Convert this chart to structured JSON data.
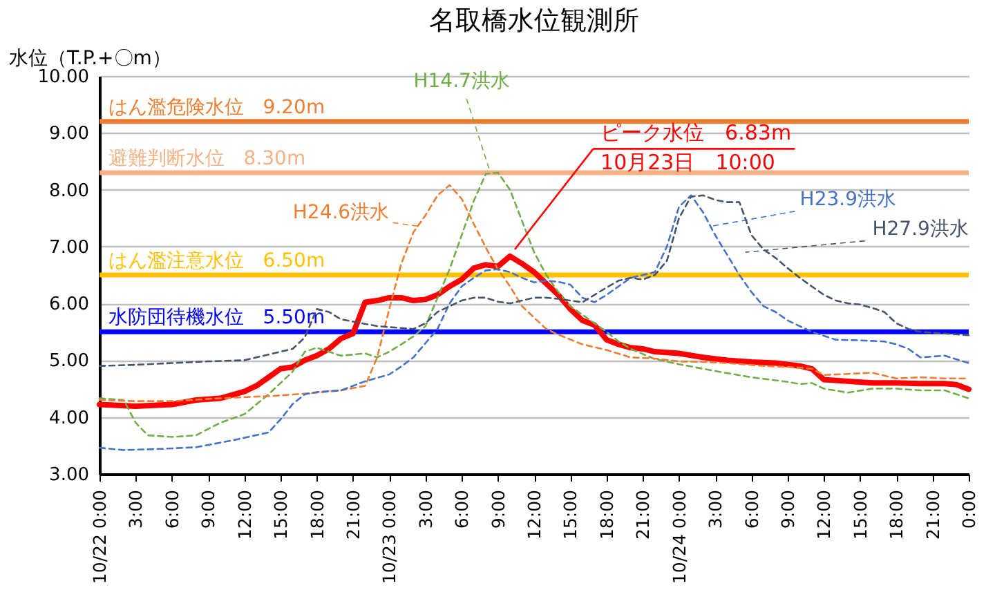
{
  "chart_data": {
    "type": "line",
    "title": "名取橋水位観測所",
    "ylabel": "水位（T.P.+〇m）",
    "xlim": [
      "--10-22T00:00",
      "--10-25T00:00"
    ],
    "ylim": [
      3,
      10
    ],
    "xticks": [
      {
        "value": "--10-22T00:00",
        "label": "10/22 0:00"
      },
      {
        "value": "--10-22T03:00",
        "label": "3:00"
      },
      {
        "value": "--10-22T06:00",
        "label": "6:00"
      },
      {
        "value": "--10-22T09:00",
        "label": "9:00"
      },
      {
        "value": "--10-22T12:00",
        "label": "12:00"
      },
      {
        "value": "--10-22T15:00",
        "label": "15:00"
      },
      {
        "value": "--10-22T18:00",
        "label": "18:00"
      },
      {
        "value": "--10-22T21:00",
        "label": "21:00"
      },
      {
        "value": "--10-23T00:00",
        "label": "10/23 0:00"
      },
      {
        "value": "--10-23T03:00",
        "label": "3:00"
      },
      {
        "value": "--10-23T06:00",
        "label": "6:00"
      },
      {
        "value": "--10-23T09:00",
        "label": "9:00"
      },
      {
        "value": "--10-23T12:00",
        "label": "12:00"
      },
      {
        "value": "--10-23T15:00",
        "label": "15:00"
      },
      {
        "value": "--10-23T18:00",
        "label": "18:00"
      },
      {
        "value": "--10-23T21:00",
        "label": "21:00"
      },
      {
        "value": "--10-24T00:00",
        "label": "10/24 0:00"
      },
      {
        "value": "--10-24T03:00",
        "label": "3:00"
      },
      {
        "value": "--10-24T06:00",
        "label": "6:00"
      },
      {
        "value": "--10-24T09:00",
        "label": "9:00"
      },
      {
        "value": "--10-24T12:00",
        "label": "12:00"
      },
      {
        "value": "--10-24T15:00",
        "label": "15:00"
      },
      {
        "value": "--10-24T18:00",
        "label": "18:00"
      },
      {
        "value": "--10-24T21:00",
        "label": "21:00"
      },
      {
        "value": "--10-25T00:00",
        "label": "0:00"
      }
    ],
    "yticks": [
      {
        "value": 3,
        "label": "3.00"
      },
      {
        "value": 4,
        "label": "4.00"
      },
      {
        "value": 5,
        "label": "5.00"
      },
      {
        "value": 6,
        "label": "6.00"
      },
      {
        "value": 7,
        "label": "7.00"
      },
      {
        "value": 8,
        "label": "8.00"
      },
      {
        "value": 9,
        "label": "9.00"
      },
      {
        "value": 10,
        "label": "10.00"
      }
    ],
    "grid": "y",
    "series": [
      {
        "color": "#ff0000",
        "line_style": "solid",
        "x": [
          "--10-22T00:00",
          "--10-22T03:00",
          "--10-22T06:00",
          "--10-22T08:00",
          "--10-22T10:00",
          "--10-22T12:00",
          "--10-22T13:00",
          "--10-22T14:00",
          "--10-22T15:00",
          "--10-22T16:00",
          "--10-22T17:00",
          "--10-22T18:00",
          "--10-22T19:00",
          "--10-22T20:00",
          "--10-22T21:00",
          "--10-22T22:00",
          "--10-22T23:00",
          "--10-23T00:00",
          "--10-23T01:00",
          "--10-23T02:00",
          "--10-23T03:00",
          "--10-23T04:00",
          "--10-23T05:00",
          "--10-23T06:00",
          "--10-23T07:00",
          "--10-23T08:00",
          "--10-23T09:00",
          "--10-23T10:00",
          "--10-23T11:00",
          "--10-23T12:00",
          "--10-23T13:00",
          "--10-23T14:00",
          "--10-23T15:00",
          "--10-23T16:00",
          "--10-23T17:00",
          "--10-23T18:00",
          "--10-23T19:00",
          "--10-23T20:00",
          "--10-23T21:00",
          "--10-23T22:00",
          "--10-24T00:00",
          "--10-24T02:00",
          "--10-24T04:00",
          "--10-24T06:00",
          "--10-24T08:00",
          "--10-24T10:00",
          "--10-24T11:00",
          "--10-24T12:00",
          "--10-24T14:00",
          "--10-24T16:00",
          "--10-24T18:00",
          "--10-24T20:00",
          "--10-24T22:00",
          "--10-24T23:00",
          "--10-25T00:00"
        ],
        "values": [
          4.22,
          4.19,
          4.22,
          4.3,
          4.33,
          4.45,
          4.55,
          4.7,
          4.85,
          4.88,
          5.0,
          5.08,
          5.2,
          5.38,
          5.47,
          6.02,
          6.05,
          6.1,
          6.1,
          6.05,
          6.07,
          6.15,
          6.3,
          6.42,
          6.62,
          6.68,
          6.65,
          6.83,
          6.7,
          6.55,
          6.35,
          6.15,
          5.9,
          5.7,
          5.62,
          5.36,
          5.28,
          5.22,
          5.2,
          5.15,
          5.12,
          5.05,
          5.0,
          4.97,
          4.95,
          4.9,
          4.85,
          4.66,
          4.63,
          4.6,
          4.6,
          4.59,
          4.59,
          4.57,
          4.49
        ]
      },
      {
        "name": "H14.7洪水",
        "color": "#70ad47",
        "line_style": "dashed",
        "x": [
          "--10-22T00:00",
          "--10-22T02:00",
          "--10-22T03:00",
          "--10-22T04:00",
          "--10-22T06:00",
          "--10-22T08:00",
          "--10-22T10:00",
          "--10-22T12:00",
          "--10-22T14:00",
          "--10-22T16:00",
          "--10-22T17:00",
          "--10-22T18:00",
          "--10-22T19:00",
          "--10-22T20:00",
          "--10-22T21:00",
          "--10-22T22:00",
          "--10-22T23:00",
          "--10-23T00:00",
          "--10-23T01:00",
          "--10-23T02:00",
          "--10-23T03:00",
          "--10-23T04:00",
          "--10-23T05:00",
          "--10-23T06:00",
          "--10-23T07:00",
          "--10-23T08:00",
          "--10-23T09:00",
          "--10-23T10:00",
          "--10-23T11:00",
          "--10-23T12:00",
          "--10-23T13:00",
          "--10-23T14:00",
          "--10-23T15:00",
          "--10-23T16:00",
          "--10-23T17:00",
          "--10-23T18:00",
          "--10-23T19:00",
          "--10-23T20:00",
          "--10-23T22:00",
          "--10-24T00:00",
          "--10-24T03:00",
          "--10-24T06:00",
          "--10-24T09:00",
          "--10-24T10:00",
          "--10-24T11:00",
          "--10-24T12:00",
          "--10-24T14:00",
          "--10-24T16:00",
          "--10-24T18:00",
          "--10-24T20:00",
          "--10-24T22:00",
          "--10-25T00:00"
        ],
        "values": [
          4.33,
          4.3,
          3.9,
          3.68,
          3.65,
          3.68,
          3.9,
          4.05,
          4.4,
          4.8,
          5.15,
          5.22,
          5.15,
          5.08,
          5.1,
          5.12,
          5.05,
          5.15,
          5.28,
          5.42,
          5.6,
          6.1,
          6.6,
          7.2,
          7.8,
          8.28,
          8.3,
          8.0,
          7.45,
          6.9,
          6.5,
          6.2,
          5.95,
          5.8,
          5.65,
          5.5,
          5.33,
          5.2,
          5.02,
          4.93,
          4.81,
          4.7,
          4.62,
          4.58,
          4.6,
          4.5,
          4.43,
          4.5,
          4.5,
          4.47,
          4.47,
          4.33
        ]
      },
      {
        "name": "H24.6洪水",
        "color": "#ed7d31",
        "line_style": "dashed",
        "x": [
          "--10-22T00:00",
          "--10-22T03:00",
          "--10-22T06:00",
          "--10-22T09:00",
          "--10-22T12:00",
          "--10-22T15:00",
          "--10-22T18:00",
          "--10-22T20:00",
          "--10-22T22:00",
          "--10-22T23:00",
          "--10-23T00:00",
          "--10-23T01:00",
          "--10-23T02:00",
          "--10-23T03:00",
          "--10-23T04:00",
          "--10-23T05:00",
          "--10-23T06:00",
          "--10-23T07:00",
          "--10-23T08:00",
          "--10-23T09:00",
          "--10-23T10:00",
          "--10-23T11:00",
          "--10-23T12:00",
          "--10-23T13:00",
          "--10-23T14:00",
          "--10-23T16:00",
          "--10-23T18:00",
          "--10-23T20:00",
          "--10-23T22:00",
          "--10-24T00:00",
          "--10-24T02:00",
          "--10-24T04:00",
          "--10-24T07:00",
          "--10-24T10:00",
          "--10-24T11:00",
          "--10-24T12:00",
          "--10-24T14:00",
          "--10-24T16:00",
          "--10-24T18:00",
          "--10-24T20:00",
          "--10-24T22:00",
          "--10-25T00:00"
        ],
        "values": [
          4.3,
          4.28,
          4.28,
          4.32,
          4.35,
          4.38,
          4.43,
          4.47,
          4.55,
          5.05,
          5.9,
          6.7,
          7.25,
          7.55,
          7.9,
          8.08,
          7.84,
          7.4,
          6.98,
          6.6,
          6.3,
          5.95,
          5.75,
          5.55,
          5.45,
          5.28,
          5.18,
          5.05,
          5.03,
          4.98,
          4.97,
          4.95,
          4.9,
          4.87,
          4.85,
          4.74,
          4.76,
          4.78,
          4.68,
          4.7,
          4.68,
          4.68
        ]
      },
      {
        "name": "H23.9洪水",
        "color": "#4472c4",
        "line_style": "dashed",
        "x": [
          "--10-22T00:00",
          "--10-22T02:00",
          "--10-22T05:00",
          "--10-22T08:00",
          "--10-22T11:00",
          "--10-22T14:00",
          "--10-22T15:00",
          "--10-22T16:00",
          "--10-22T17:00",
          "--10-22T18:00",
          "--10-22T20:00",
          "--10-22T22:00",
          "--10-23T00:00",
          "--10-23T01:00",
          "--10-23T02:00",
          "--10-23T03:00",
          "--10-23T04:00",
          "--10-23T05:00",
          "--10-23T06:00",
          "--10-23T07:00",
          "--10-23T08:00",
          "--10-23T09:00",
          "--10-23T10:00",
          "--10-23T11:00",
          "--10-23T12:00",
          "--10-23T13:00",
          "--10-23T14:00",
          "--10-23T15:00",
          "--10-23T16:00",
          "--10-23T17:00",
          "--10-23T18:00",
          "--10-23T19:00",
          "--10-23T20:00",
          "--10-23T21:00",
          "--10-23T22:00",
          "--10-23T23:00",
          "--10-24T00:00",
          "--10-24T01:00",
          "--10-24T02:00",
          "--10-24T03:00",
          "--10-24T04:00",
          "--10-24T05:00",
          "--10-24T06:00",
          "--10-24T07:00",
          "--10-24T08:00",
          "--10-24T09:00",
          "--10-24T11:00",
          "--10-24T13:00",
          "--10-24T15:00",
          "--10-24T17:00",
          "--10-24T18:00",
          "--10-24T19:00",
          "--10-24T20:00",
          "--10-24T22:00",
          "--10-25T00:00"
        ],
        "values": [
          3.46,
          3.42,
          3.44,
          3.47,
          3.59,
          3.73,
          3.96,
          4.23,
          4.4,
          4.44,
          4.47,
          4.63,
          4.75,
          4.89,
          5.05,
          5.3,
          5.55,
          6.0,
          6.3,
          6.45,
          6.58,
          6.6,
          6.55,
          6.45,
          6.37,
          6.4,
          6.38,
          6.33,
          6.1,
          6.02,
          6.15,
          6.3,
          6.45,
          6.5,
          6.55,
          7.0,
          7.7,
          7.9,
          7.6,
          7.2,
          6.85,
          6.5,
          6.2,
          5.95,
          5.85,
          5.7,
          5.5,
          5.36,
          5.35,
          5.33,
          5.28,
          5.2,
          5.05,
          5.08,
          4.95
        ]
      },
      {
        "name": "H27.9洪水",
        "color": "#44546a",
        "line_style": "dashed",
        "x": [
          "--10-22T00:00",
          "--10-22T03:00",
          "--10-22T06:00",
          "--10-22T09:00",
          "--10-22T12:00",
          "--10-22T14:00",
          "--10-22T16:00",
          "--10-22T17:00",
          "--10-22T18:00",
          "--10-22T19:00",
          "--10-22T20:00",
          "--10-22T21:00",
          "--10-22T23:00",
          "--10-23T02:00",
          "--10-23T03:00",
          "--10-23T04:00",
          "--10-23T05:00",
          "--10-23T06:00",
          "--10-23T07:00",
          "--10-23T08:00",
          "--10-23T09:00",
          "--10-23T10:00",
          "--10-23T11:00",
          "--10-23T12:00",
          "--10-23T13:00",
          "--10-23T14:00",
          "--10-23T15:00",
          "--10-23T16:00",
          "--10-23T17:00",
          "--10-23T18:00",
          "--10-23T19:00",
          "--10-23T20:00",
          "--10-23T21:00",
          "--10-23T22:00",
          "--10-23T23:00",
          "--10-24T00:00",
          "--10-24T01:00",
          "--10-24T02:00",
          "--10-24T03:00",
          "--10-24T04:00",
          "--10-24T05:00",
          "--10-24T06:00",
          "--10-24T07:00",
          "--10-24T08:00",
          "--10-24T09:00",
          "--10-24T10:00",
          "--10-24T11:00",
          "--10-24T12:00",
          "--10-24T13:00",
          "--10-24T14:00",
          "--10-24T15:00",
          "--10-24T16:00",
          "--10-24T17:00",
          "--10-24T18:00",
          "--10-24T19:00",
          "--10-24T20:00",
          "--10-24T22:00",
          "--10-25T00:00"
        ],
        "values": [
          4.9,
          4.92,
          4.95,
          4.98,
          5.0,
          5.1,
          5.2,
          5.4,
          5.9,
          5.85,
          5.72,
          5.68,
          5.6,
          5.55,
          5.65,
          5.85,
          5.95,
          6.05,
          6.1,
          6.1,
          6.03,
          6.0,
          6.05,
          6.1,
          6.1,
          6.08,
          6.05,
          6.02,
          6.15,
          6.28,
          6.4,
          6.45,
          6.42,
          6.5,
          6.75,
          7.5,
          7.88,
          7.9,
          7.82,
          7.78,
          7.78,
          7.2,
          6.95,
          6.8,
          6.62,
          6.45,
          6.3,
          6.15,
          6.05,
          6.0,
          5.98,
          5.92,
          5.85,
          5.65,
          5.55,
          5.5,
          5.47,
          5.44
        ]
      }
    ],
    "ref_lines": [
      {
        "axis": "y",
        "value": 9.2,
        "label": "はん濫危険水位　9.20m",
        "color": "#ed7d31"
      },
      {
        "axis": "y",
        "value": 8.3,
        "label": "避難判断水位　8.30m",
        "color": "#f4b183"
      },
      {
        "axis": "y",
        "value": 6.5,
        "label": "はん濫注意水位　6.50m",
        "color": "#ffc000"
      },
      {
        "axis": "y",
        "value": 5.5,
        "label": "水防団待機水位　5.50m",
        "color": "#0000ff"
      }
    ],
    "annotations": [
      {
        "text": "ピーク水位　6.83m",
        "x": "--10-23T10:00",
        "y": 6.83
      },
      "10月23日　10:00"
    ]
  }
}
